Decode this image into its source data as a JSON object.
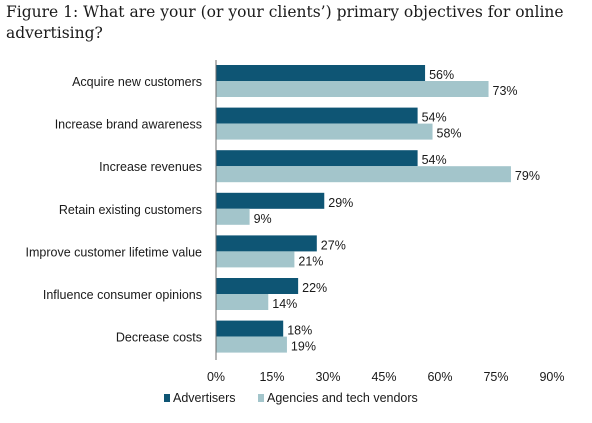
{
  "chart_data": {
    "type": "bar",
    "orientation": "horizontal",
    "title": "Figure 1: What are your (or your clients’) primary objectives for online advertising?",
    "categories": [
      "Acquire new customers",
      "Increase brand awareness",
      "Increase revenues",
      "Retain existing customers",
      "Improve customer lifetime value",
      "Influence consumer opinions",
      "Decrease costs"
    ],
    "series": [
      {
        "name": "Advertisers",
        "color": "#0e5574",
        "values": [
          56,
          54,
          54,
          29,
          27,
          22,
          18
        ]
      },
      {
        "name": "Agencies and tech vendors",
        "color": "#a3c5cb",
        "values": [
          73,
          58,
          79,
          9,
          21,
          14,
          19
        ]
      }
    ],
    "value_suffix": "%",
    "xlim": [
      0,
      90
    ],
    "xticks": [
      "0%",
      "15%",
      "30%",
      "45%",
      "60%",
      "75%",
      "90%"
    ],
    "grid": false,
    "legend": "bottom"
  }
}
